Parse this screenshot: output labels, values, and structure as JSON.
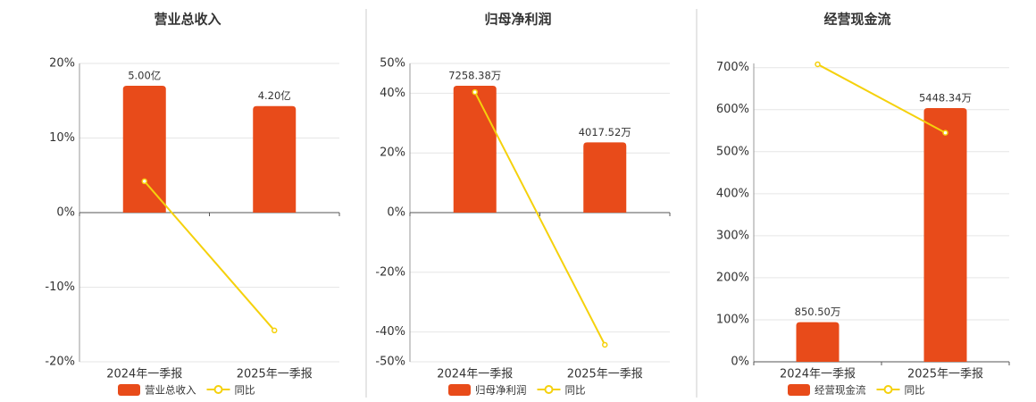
{
  "chart_data": [
    {
      "type": "bar",
      "title": "营业总收入",
      "categories": [
        "2024年一季报",
        "2025年一季报"
      ],
      "series": [
        {
          "name": "营业总收入",
          "type": "bar",
          "axis": "y2",
          "color": "#e84b1a",
          "values": [
            5.0,
            4.2
          ],
          "value_labels": [
            "5.00亿",
            "4.20亿"
          ]
        },
        {
          "name": "同比",
          "type": "line",
          "color": "#f5d10c",
          "values": [
            4.2,
            -15.8
          ]
        }
      ],
      "ylim": [
        -20,
        20
      ],
      "yticks": [
        {
          "value": -20,
          "label": "-20%"
        },
        {
          "value": -10,
          "label": "-10%"
        },
        {
          "value": 0,
          "label": "0%"
        },
        {
          "value": 10,
          "label": "10%"
        },
        {
          "value": 20,
          "label": "20%"
        }
      ],
      "y2lim": [
        -5.88,
        5.88
      ],
      "grid": true
    },
    {
      "type": "bar",
      "title": "归母净利润",
      "categories": [
        "2024年一季报",
        "2025年一季报"
      ],
      "series": [
        {
          "name": "归母净利润",
          "type": "bar",
          "axis": "y2",
          "color": "#e84b1a",
          "values": [
            7258.38,
            4017.52
          ],
          "value_labels": [
            "7258.38万",
            "4017.52万"
          ]
        },
        {
          "name": "同比",
          "type": "line",
          "color": "#f5d10c",
          "values": [
            40.4,
            -44.3
          ]
        }
      ],
      "ylim": [
        -50,
        50
      ],
      "yticks": [
        {
          "value": -50,
          "label": "-50%"
        },
        {
          "value": -40,
          "label": "-40%"
        },
        {
          "value": -20,
          "label": "-20%"
        },
        {
          "value": 0,
          "label": "0%"
        },
        {
          "value": 20,
          "label": "20%"
        },
        {
          "value": 40,
          "label": "40%"
        },
        {
          "value": 50,
          "label": "50%"
        }
      ],
      "y2lim": [
        -8536,
        8536
      ],
      "grid": true
    },
    {
      "type": "bar",
      "title": "经营现金流",
      "categories": [
        "2024年一季报",
        "2025年一季报"
      ],
      "series": [
        {
          "name": "经营现金流",
          "type": "bar",
          "axis": "y2",
          "color": "#e84b1a",
          "values": [
            850.5,
            5448.34
          ],
          "value_labels": [
            "850.50万",
            "5448.34万"
          ]
        },
        {
          "name": "同比",
          "type": "line",
          "color": "#f5d10c",
          "values": [
            708,
            545
          ]
        }
      ],
      "ylim": [
        0,
        710
      ],
      "yticks": [
        {
          "value": 0,
          "label": "0%"
        },
        {
          "value": 100,
          "label": "100%"
        },
        {
          "value": 200,
          "label": "200%"
        },
        {
          "value": 300,
          "label": "300%"
        },
        {
          "value": 400,
          "label": "400%"
        },
        {
          "value": 500,
          "label": "500%"
        },
        {
          "value": 600,
          "label": "600%"
        },
        {
          "value": 700,
          "label": "700%"
        }
      ],
      "y2lim": [
        0,
        6407
      ],
      "grid": true
    }
  ]
}
